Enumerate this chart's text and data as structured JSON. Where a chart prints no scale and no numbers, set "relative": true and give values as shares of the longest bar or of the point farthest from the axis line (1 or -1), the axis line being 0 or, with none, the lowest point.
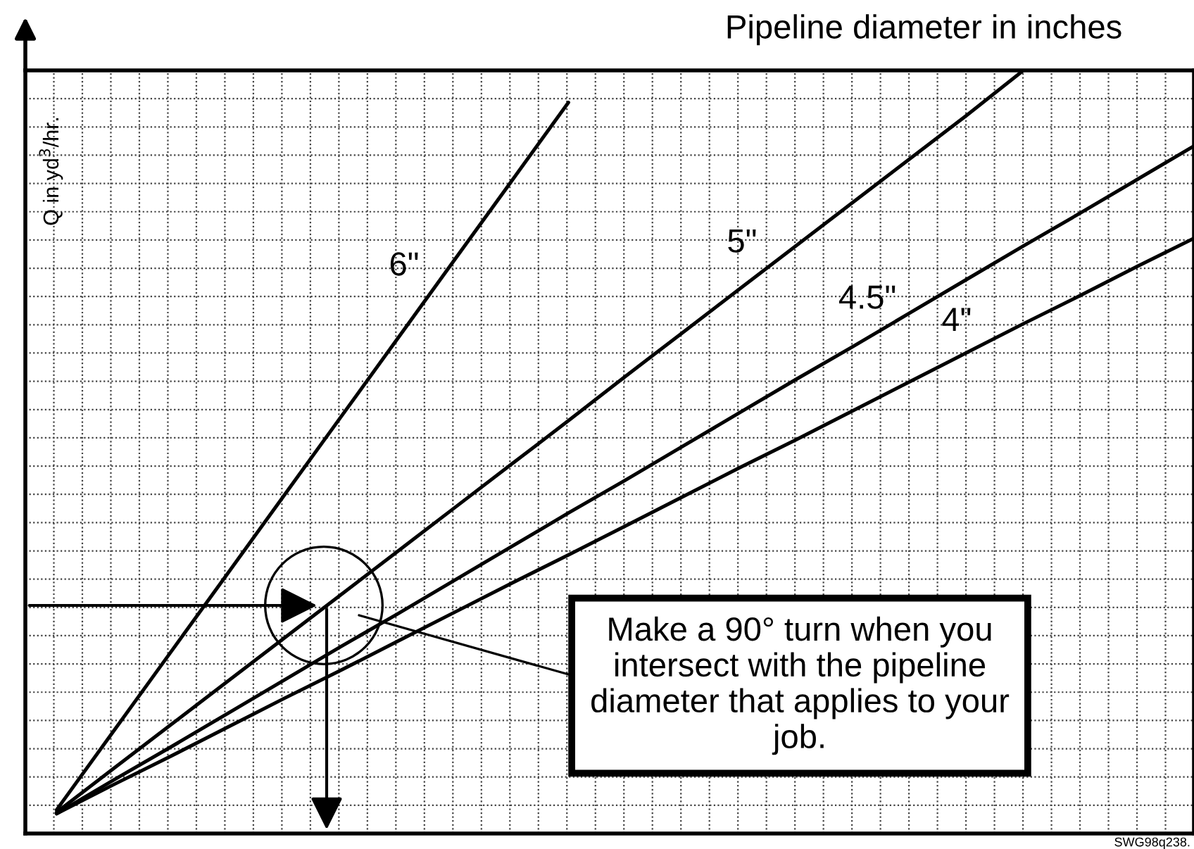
{
  "chart_data": {
    "type": "line",
    "relative": true,
    "title": "Pipeline diameter in inches",
    "ylabel": "Q in yd$^{3}$/hr.",
    "categories": [
      null,
      null,
      null,
      null,
      null,
      null,
      null,
      null,
      null,
      null,
      null,
      null,
      null,
      null,
      null,
      null,
      null,
      null,
      null,
      null,
      null
    ],
    "grid": true,
    "line_style": "solid",
    "marker": "none",
    "series": [
      {
        "name": "6\"",
        "color": "#000000",
        "values": [
          0.031,
          0.134,
          0.237,
          0.34,
          0.443,
          0.546,
          0.649,
          0.752,
          0.855,
          0.958,
          null,
          null,
          null,
          null,
          null,
          null,
          null,
          null,
          null,
          null,
          null
        ]
      },
      {
        "name": "5\"",
        "color": "#000000",
        "values": [
          0.028,
          0.085,
          0.142,
          0.199,
          0.256,
          0.313,
          0.37,
          0.427,
          0.484,
          0.541,
          0.599,
          0.656,
          0.713,
          0.77,
          0.827,
          0.884,
          0.941,
          1.0,
          null,
          null,
          null
        ]
      },
      {
        "name": "4.5\"",
        "color": "#000000",
        "values": [
          0.026,
          0.07,
          0.113,
          0.157,
          0.201,
          0.245,
          0.288,
          0.332,
          0.376,
          0.42,
          0.463,
          0.507,
          0.551,
          0.595,
          0.638,
          0.682,
          0.726,
          0.77,
          0.813,
          0.857,
          0.901
        ]
      },
      {
        "name": "4\"",
        "color": "#000000",
        "values": [
          0.026,
          0.064,
          0.101,
          0.139,
          0.177,
          0.214,
          0.252,
          0.29,
          0.328,
          0.365,
          0.403,
          0.441,
          0.479,
          0.516,
          0.554,
          0.592,
          0.63,
          0.668,
          0.705,
          0.743,
          0.78
        ]
      }
    ],
    "annotations": [
      "Make a 90° turn when you intersect with the pipeline diameter that applies to your job.",
      "SWG98q238."
    ]
  }
}
